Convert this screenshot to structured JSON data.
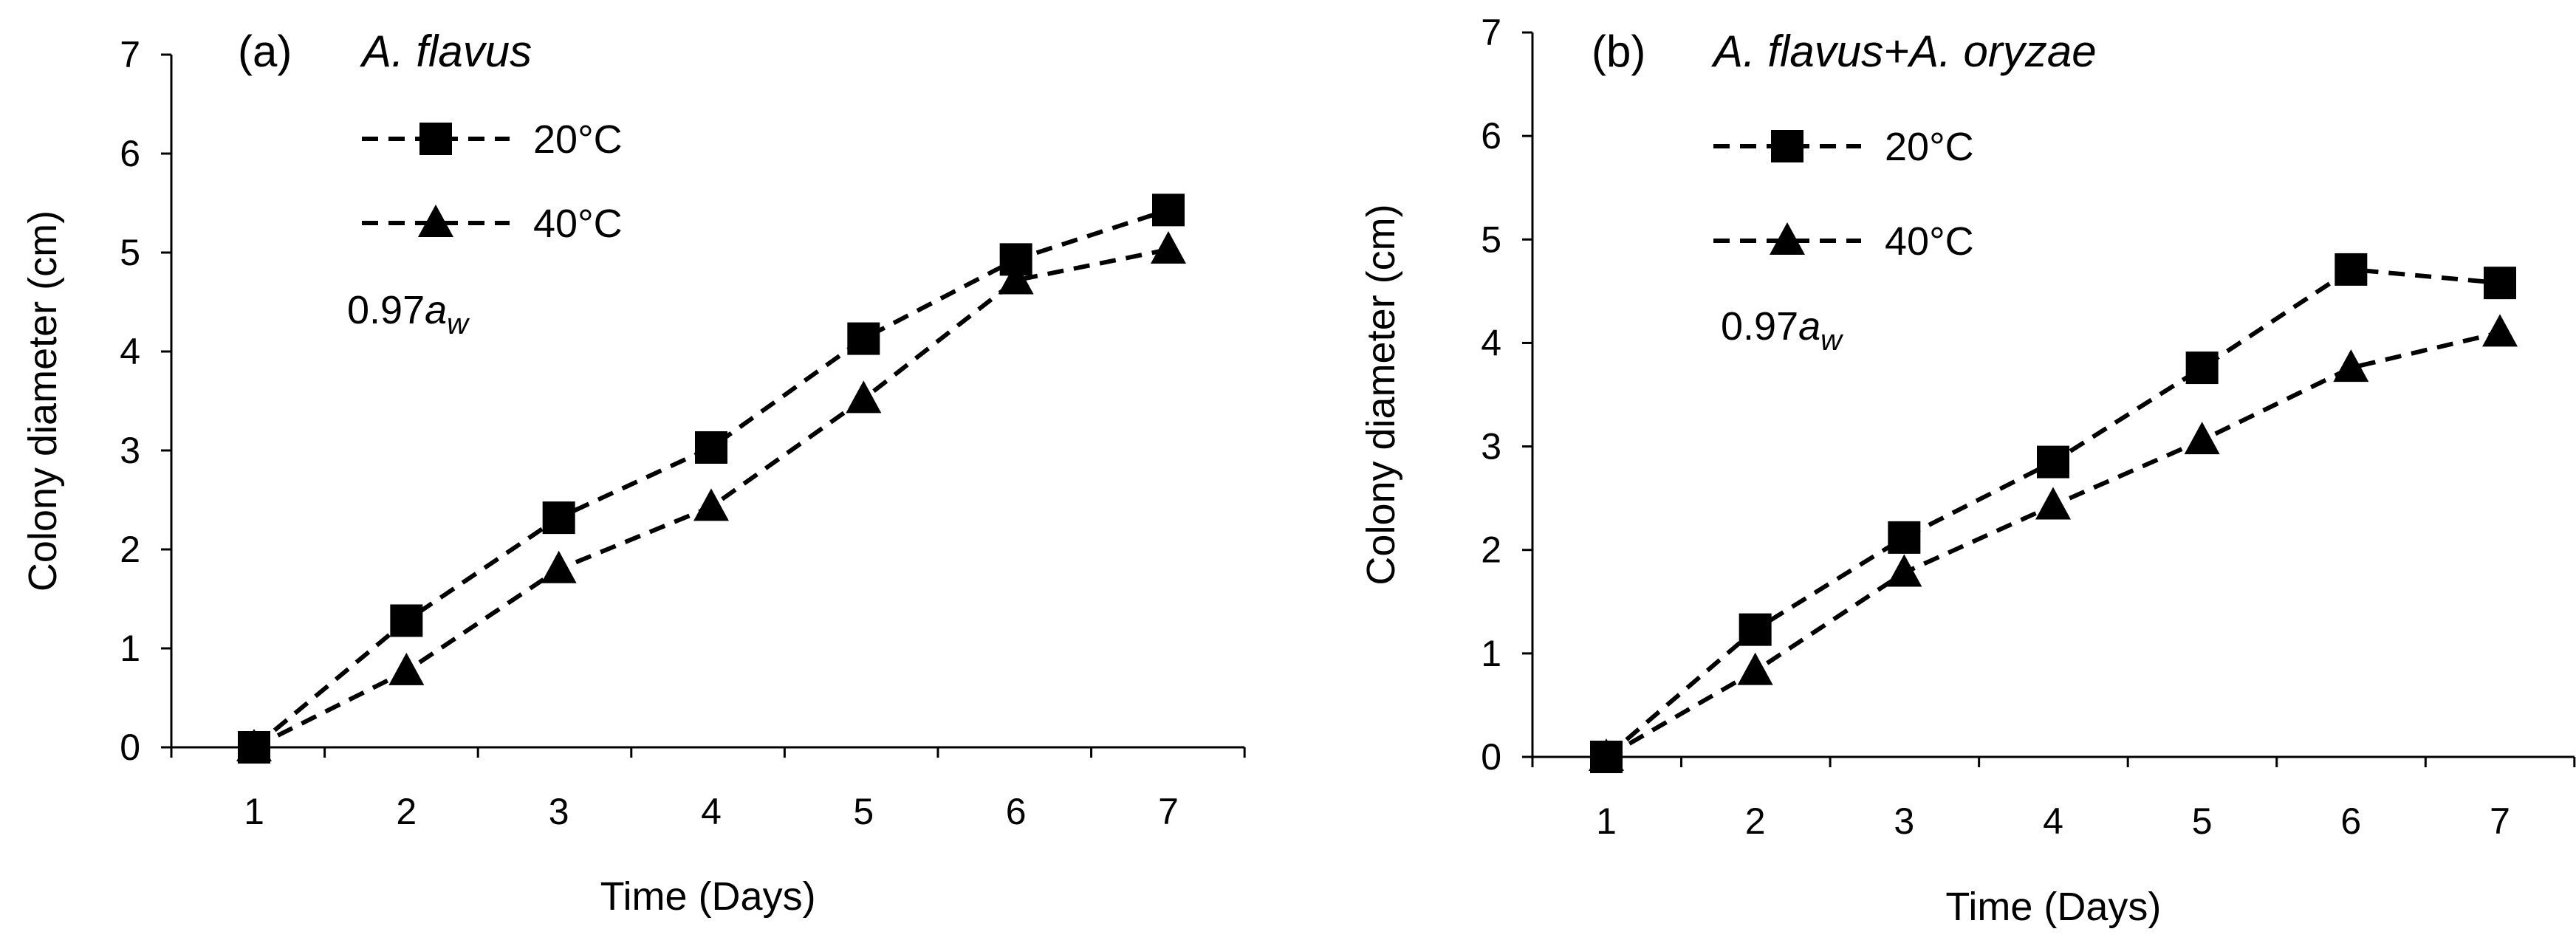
{
  "chart_data": [
    {
      "type": "line",
      "panel_label": "(a)",
      "title": "A. flavus",
      "xlabel": "Time (Days)",
      "ylabel": "Colony diameter (cm)",
      "x": [
        1,
        2,
        3,
        4,
        5,
        6,
        7
      ],
      "x_tick_labels": [
        "1",
        "2",
        "3",
        "4",
        "5",
        "6",
        "7"
      ],
      "y_tick_labels": [
        "0",
        "1",
        "2",
        "3",
        "4",
        "5",
        "6",
        "7"
      ],
      "ylim": [
        0,
        7
      ],
      "annotation": {
        "value": "0.97",
        "symbol": "a",
        "subscript": "w"
      },
      "legend_position": "top-left",
      "series": [
        {
          "name": "20°C",
          "marker": "square",
          "line_style": "dashed",
          "values": [
            0,
            1.28,
            2.32,
            3.03,
            4.13,
            4.93,
            5.43
          ]
        },
        {
          "name": "40°C",
          "marker": "triangle",
          "line_style": "dashed",
          "values": [
            0,
            0.77,
            1.8,
            2.43,
            3.52,
            4.72,
            5.03
          ]
        }
      ]
    },
    {
      "type": "line",
      "panel_label": "(b)",
      "title": "A. flavus+A. oryzae",
      "xlabel": "Time (Days)",
      "ylabel": "Colony diameter (cm)",
      "x": [
        1,
        2,
        3,
        4,
        5,
        6,
        7
      ],
      "x_tick_labels": [
        "1",
        "2",
        "3",
        "4",
        "5",
        "6",
        "7"
      ],
      "y_tick_labels": [
        "0",
        "1",
        "2",
        "3",
        "4",
        "5",
        "6",
        "7"
      ],
      "ylim": [
        0,
        7
      ],
      "annotation": {
        "value": "0.97",
        "symbol": "a",
        "subscript": "w"
      },
      "legend_position": "top-left",
      "series": [
        {
          "name": "20°C",
          "marker": "square",
          "line_style": "dashed",
          "values": [
            0,
            1.23,
            2.12,
            2.85,
            3.76,
            4.71,
            4.58
          ]
        },
        {
          "name": "40°C",
          "marker": "triangle",
          "line_style": "dashed",
          "values": [
            0,
            0.83,
            1.78,
            2.43,
            3.06,
            3.76,
            4.1
          ]
        }
      ]
    }
  ]
}
